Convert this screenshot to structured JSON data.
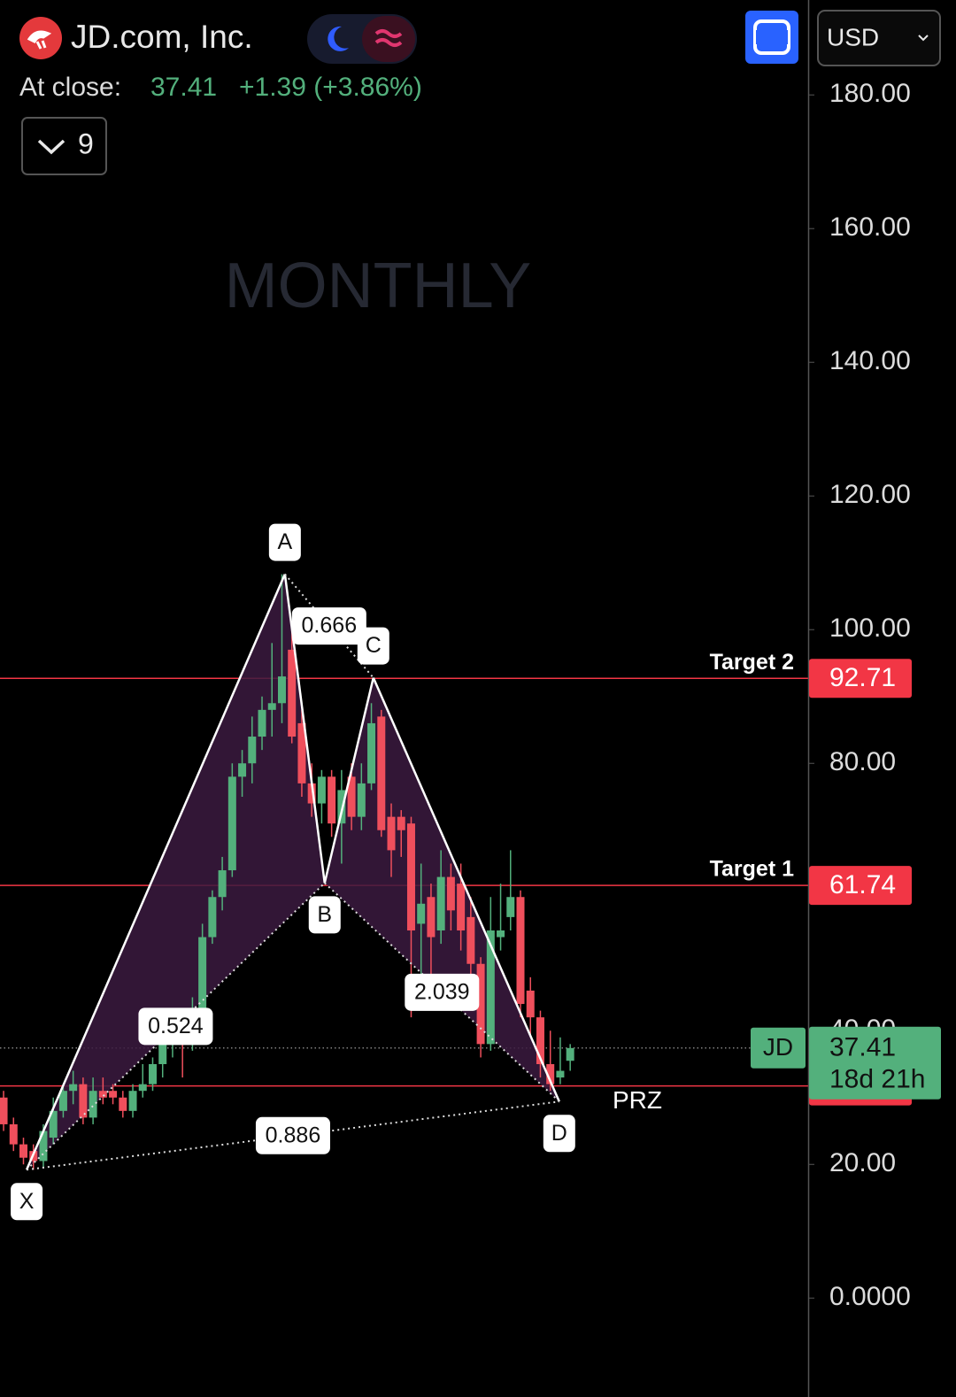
{
  "header": {
    "title": "JD.com, Inc.",
    "close_label": "At close:",
    "price": "37.41",
    "change": "+1.39 (+3.86%)",
    "indicators": "9",
    "currency": "USD"
  },
  "chart_data": {
    "type": "candlestick",
    "watermark": "MONTHLY",
    "symbol": "JD",
    "countdown": "18d 21h",
    "up_color": "#53b07c",
    "down_color": "#ef4f5c",
    "open": [
      30,
      26,
      23,
      22,
      20.5,
      24,
      28,
      31,
      32,
      27,
      31,
      31,
      30,
      28,
      31,
      32,
      35,
      38,
      40,
      38,
      43,
      54,
      60,
      64,
      78,
      80,
      84,
      88,
      89,
      97,
      86,
      77,
      74,
      78,
      71,
      78,
      72,
      77,
      87,
      72,
      72,
      71,
      56,
      60,
      55,
      63,
      62,
      57,
      50,
      38,
      54,
      57,
      60,
      46,
      42,
      35,
      33,
      35.5
    ],
    "high": [
      31,
      27,
      24,
      23,
      26,
      30,
      32,
      34,
      33,
      33,
      33,
      32,
      31,
      32,
      35,
      36,
      40,
      42,
      41,
      45,
      56,
      61,
      66,
      80,
      82,
      87,
      90,
      98,
      108.3,
      100,
      88,
      80,
      79,
      79,
      79,
      80,
      80,
      89,
      88,
      74,
      73,
      72,
      65,
      62,
      67,
      65,
      65,
      60,
      51,
      60,
      62,
      67,
      61,
      48,
      43,
      40,
      39,
      38
    ],
    "low": [
      25,
      22,
      20,
      19.2,
      19.5,
      23,
      27,
      29,
      26,
      26,
      29,
      29,
      27,
      27,
      30,
      31,
      33,
      36,
      33,
      37,
      42,
      53,
      58,
      63,
      75,
      77,
      82,
      84,
      86,
      83,
      75,
      72,
      71,
      69,
      65,
      70,
      70,
      76,
      69,
      63,
      66,
      42,
      48,
      45,
      53,
      55,
      52,
      48,
      36,
      37,
      52,
      55,
      42,
      39,
      33,
      31,
      32,
      34
    ],
    "close": [
      26,
      23,
      21,
      20.5,
      25,
      28,
      31,
      32,
      27,
      31,
      30,
      30,
      28,
      31,
      32,
      35,
      38,
      40,
      38,
      43,
      54,
      60,
      64,
      78,
      80,
      84,
      88,
      89,
      93,
      84,
      77,
      74,
      78,
      71,
      76,
      72,
      77,
      86,
      70,
      67,
      70,
      55,
      59,
      54,
      63,
      58,
      55,
      50,
      38,
      55,
      55,
      60,
      44,
      42,
      35,
      32,
      34,
      37.41
    ],
    "xlim": [
      -0.36,
      80.94
    ],
    "ylim": [
      -14.8,
      194.2
    ],
    "yticks": [
      {
        "value": 0,
        "label": "0.0000"
      },
      {
        "value": 20,
        "label": "20.00"
      },
      {
        "value": 40,
        "label": "40.00"
      },
      {
        "value": 60,
        "label": "60.00"
      },
      {
        "value": 80,
        "label": "80.00"
      },
      {
        "value": 100,
        "label": "100.00"
      },
      {
        "value": 120,
        "label": "120.00"
      },
      {
        "value": 140,
        "label": "140.00"
      },
      {
        "value": 160,
        "label": "160.00"
      },
      {
        "value": 180,
        "label": "180.00"
      }
    ],
    "hlines": [
      {
        "name": "Target 2",
        "value": 92.71,
        "color": "#f23645",
        "bold": true
      },
      {
        "name": "Target 1",
        "value": 61.74,
        "color": "#f23645",
        "bold": true
      },
      {
        "name": "PRZ",
        "value": 31.73,
        "color": "#f23645",
        "bold": false
      }
    ],
    "pattern": {
      "fill": "#3b1a40",
      "points": [
        {
          "label": "X",
          "x": 2.32,
          "y": 19.2
        },
        {
          "label": "A",
          "x": 28.3,
          "y": 108.3
        },
        {
          "label": "B",
          "x": 32.3,
          "y": 62.1
        },
        {
          "label": "C",
          "x": 37.2,
          "y": 92.8
        },
        {
          "label": "D",
          "x": 55.9,
          "y": 29.4
        }
      ],
      "ratios": [
        "0.524",
        "0.666",
        "2.039",
        "0.886"
      ]
    }
  }
}
